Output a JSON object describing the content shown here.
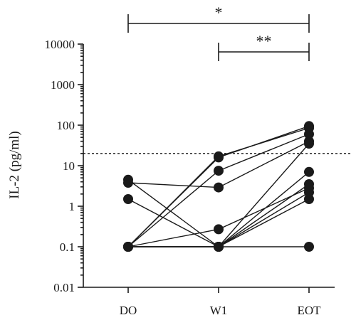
{
  "chart_data": {
    "type": "scatter",
    "subtype": "paired-lines",
    "xlabel": "",
    "ylabel": "IL-2 (pg/ml)",
    "categories": [
      "DO",
      "W1",
      "EOT"
    ],
    "yscale": "log",
    "ylim": [
      0.01,
      10000
    ],
    "yticks": [
      0.01,
      0.1,
      1,
      10,
      100,
      1000,
      10000
    ],
    "ytick_labels": [
      "0.01",
      "0.1",
      "1",
      "10",
      "100",
      "1000",
      "10000"
    ],
    "threshold": 20,
    "subjects": [
      {
        "values": [
          4.5,
          0.1,
          3.5
        ]
      },
      {
        "values": [
          3.8,
          2.9,
          40
        ]
      },
      {
        "values": [
          1.5,
          0.1,
          1.5
        ]
      },
      {
        "values": [
          0.1,
          16,
          95
        ]
      },
      {
        "values": [
          0.1,
          17,
          85
        ]
      },
      {
        "values": [
          0.1,
          7.5,
          60
        ]
      },
      {
        "values": [
          0.1,
          0.27,
          2.8
        ]
      },
      {
        "values": [
          0.1,
          0.1,
          35
        ]
      },
      {
        "values": [
          0.1,
          0.1,
          7
        ]
      },
      {
        "values": [
          0.1,
          0.1,
          2.2
        ]
      },
      {
        "values": [
          0.1,
          0.1,
          0.1
        ]
      }
    ],
    "significance": [
      {
        "from": "DO",
        "to": "EOT",
        "label": "*"
      },
      {
        "from": "W1",
        "to": "EOT",
        "label": "**"
      }
    ]
  }
}
